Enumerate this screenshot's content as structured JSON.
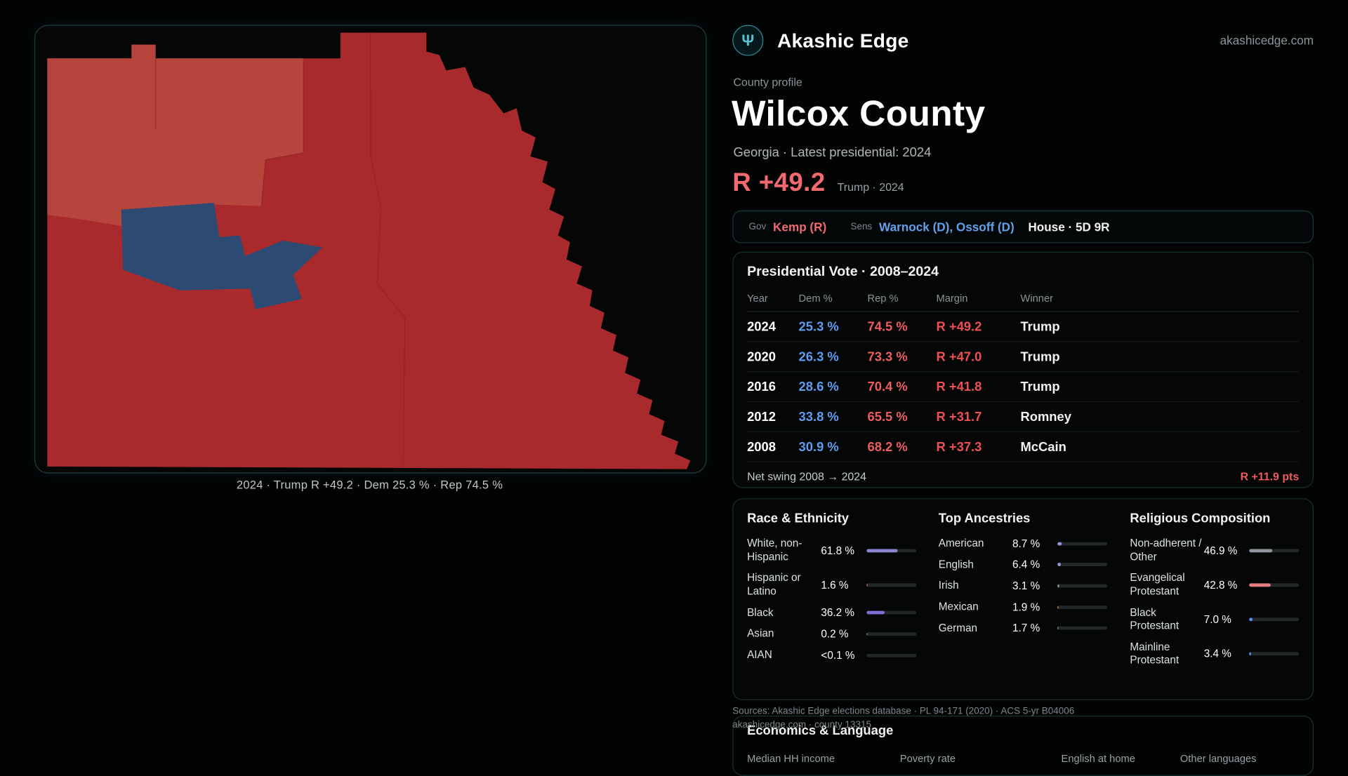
{
  "brand": {
    "name": "Akashic Edge",
    "domain": "akashicedge.com",
    "accent_teal": "#56c2d2",
    "logo_glyph": "Ψ"
  },
  "profile": {
    "kicker": "County profile",
    "title": "Wilcox County",
    "subtitle": "Georgia · Latest presidential: 2024",
    "margin_headline": "R +49.2",
    "margin_note": "Trump · 2024",
    "margin_color": "#f2696f"
  },
  "officials": {
    "gov_label": "Gov",
    "gov_value": "Kemp (R)",
    "sens_label": "Sens",
    "sens_value": "Warnock (D), Ossoff (D)",
    "house_value": "House · 5D 9R"
  },
  "map": {
    "caption": "2024 · Trump R +49.2 · Dem 25.3 % · Rep 74.5 %",
    "rep_color": "#a92a2c",
    "rep_light_color": "#b8443e",
    "dem_color": "#2d4a72"
  },
  "presidential": {
    "title": "Presidential Vote · 2008–2024",
    "columns": [
      "Year",
      "Dem %",
      "Rep %",
      "Margin",
      "Winner"
    ],
    "rows": [
      {
        "year": "2024",
        "dem": "25.3 %",
        "rep": "74.5 %",
        "margin": "R +49.2",
        "winner": "Trump"
      },
      {
        "year": "2020",
        "dem": "26.3 %",
        "rep": "73.3 %",
        "margin": "R +47.0",
        "winner": "Trump"
      },
      {
        "year": "2016",
        "dem": "28.6 %",
        "rep": "70.4 %",
        "margin": "R +41.8",
        "winner": "Trump"
      },
      {
        "year": "2012",
        "dem": "33.8 %",
        "rep": "65.5 %",
        "margin": "R +31.7",
        "winner": "Romney"
      },
      {
        "year": "2008",
        "dem": "30.9 %",
        "rep": "68.2 %",
        "margin": "R +37.3",
        "winner": "McCain"
      }
    ],
    "net_swing_label": "Net swing 2008 → 2024",
    "net_swing_value": "R +11.9 pts"
  },
  "chart_data": {
    "type": "table",
    "title": "Presidential Vote · 2008–2024",
    "categories": [
      2024,
      2020,
      2016,
      2012,
      2008
    ],
    "series": [
      {
        "name": "Dem %",
        "values": [
          25.3,
          26.3,
          28.6,
          33.8,
          30.9
        ]
      },
      {
        "name": "Rep %",
        "values": [
          74.5,
          73.3,
          70.4,
          65.5,
          68.2
        ]
      },
      {
        "name": "Margin (R+)",
        "values": [
          49.2,
          47.0,
          41.8,
          31.7,
          37.3
        ]
      }
    ],
    "winners": [
      "Trump",
      "Trump",
      "Trump",
      "Romney",
      "McCain"
    ]
  },
  "demographics": {
    "race": {
      "title": "Race & Ethnicity",
      "rows": [
        {
          "label": "White, non-Hispanic",
          "value": "61.8 %",
          "pct": 61.8,
          "color": "#8a86d2"
        },
        {
          "label": "Hispanic or Latino",
          "value": "1.6 %",
          "pct": 1.6,
          "color": "#d87aa8"
        },
        {
          "label": "Black",
          "value": "36.2 %",
          "pct": 36.2,
          "color": "#7d6fd6"
        },
        {
          "label": "Asian",
          "value": "0.2 %",
          "pct": 0.2,
          "color": "#8a86d2"
        },
        {
          "label": "AIAN",
          "value": "<0.1 %",
          "pct": 0,
          "color": "#8a86d2"
        }
      ]
    },
    "ancestry": {
      "title": "Top Ancestries",
      "rows": [
        {
          "label": "American",
          "value": "8.7 %",
          "pct": 8.7,
          "color": "#9a93d8"
        },
        {
          "label": "English",
          "value": "6.4 %",
          "pct": 6.4,
          "color": "#9a93d8"
        },
        {
          "label": "Irish",
          "value": "3.1 %",
          "pct": 3.1,
          "color": "#9a9aa5"
        },
        {
          "label": "Mexican",
          "value": "1.9 %",
          "pct": 1.9,
          "color": "#e09b4a"
        },
        {
          "label": "German",
          "value": "1.7 %",
          "pct": 1.7,
          "color": "#9a9aa5"
        }
      ]
    },
    "religion": {
      "title": "Religious Composition",
      "rows": [
        {
          "label": "Non-adherent / Other",
          "value": "46.9 %",
          "pct": 46.9,
          "color": "#8f969c"
        },
        {
          "label": "Evangelical Protestant",
          "value": "42.8 %",
          "pct": 42.8,
          "color": "#e87c80"
        },
        {
          "label": "Black Protestant",
          "value": "7.0 %",
          "pct": 7.0,
          "color": "#5b8df0"
        },
        {
          "label": "Mainline Protestant",
          "value": "3.4 %",
          "pct": 3.4,
          "color": "#63a0f0"
        }
      ]
    }
  },
  "sources": {
    "line1": "Sources: Akashic Edge elections database · PL 94-171 (2020) · ACS 5-yr B04006",
    "line2": "akashicedge.com · county 13315"
  },
  "economics": {
    "title": "Economics & Language",
    "labels": [
      "Median HH income",
      "Poverty rate",
      "English at home",
      "Other languages"
    ]
  }
}
